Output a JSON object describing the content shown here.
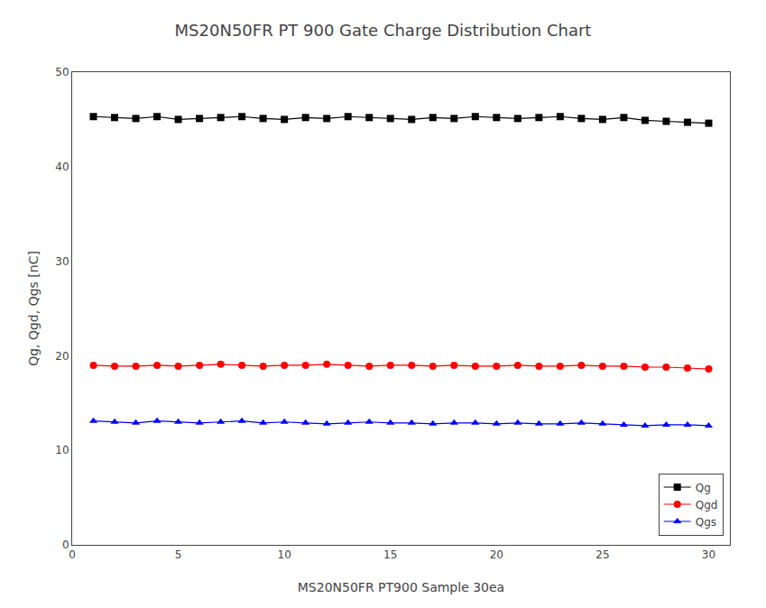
{
  "chart_data": {
    "type": "line",
    "title": "MS20N50FR PT 900 Gate Charge Distribution Chart",
    "xlabel": "MS20N50FR PT900 Sample 30ea",
    "ylabel": "Qg, Qgd, Qgs [nC]",
    "x": [
      1,
      2,
      3,
      4,
      5,
      6,
      7,
      8,
      9,
      10,
      11,
      12,
      13,
      14,
      15,
      16,
      17,
      18,
      19,
      20,
      21,
      22,
      23,
      24,
      25,
      26,
      27,
      28,
      29,
      30
    ],
    "series": [
      {
        "name": "Qg",
        "color": "#000000",
        "marker": "square",
        "line_style": "solid",
        "values": [
          45.3,
          45.2,
          45.1,
          45.3,
          45.0,
          45.1,
          45.2,
          45.3,
          45.1,
          45.0,
          45.2,
          45.1,
          45.3,
          45.2,
          45.1,
          45.0,
          45.2,
          45.1,
          45.3,
          45.2,
          45.1,
          45.2,
          45.3,
          45.1,
          45.0,
          45.2,
          44.9,
          44.8,
          44.7,
          44.6
        ]
      },
      {
        "name": "Qgd",
        "color": "#ff0000",
        "marker": "circle",
        "line_style": "solid",
        "values": [
          19.0,
          18.9,
          18.9,
          19.0,
          18.9,
          19.0,
          19.1,
          19.0,
          18.9,
          19.0,
          19.0,
          19.1,
          19.0,
          18.9,
          19.0,
          19.0,
          18.9,
          19.0,
          18.9,
          18.9,
          19.0,
          18.9,
          18.9,
          19.0,
          18.9,
          18.9,
          18.8,
          18.8,
          18.7,
          18.6
        ]
      },
      {
        "name": "Qgs",
        "color": "#0000ff",
        "marker": "triangle-up",
        "line_style": "solid",
        "values": [
          13.1,
          13.0,
          12.9,
          13.1,
          13.0,
          12.9,
          13.0,
          13.1,
          12.9,
          13.0,
          12.9,
          12.8,
          12.9,
          13.0,
          12.9,
          12.9,
          12.8,
          12.9,
          12.9,
          12.8,
          12.9,
          12.8,
          12.8,
          12.9,
          12.8,
          12.7,
          12.6,
          12.7,
          12.7,
          12.6
        ]
      }
    ],
    "xlim": [
      0,
      31
    ],
    "ylim": [
      0,
      50
    ],
    "xticks": [
      0,
      5,
      10,
      15,
      20,
      25,
      30
    ],
    "yticks": [
      0,
      10,
      20,
      30,
      40,
      50
    ],
    "grid": false,
    "legend": "lower right"
  }
}
